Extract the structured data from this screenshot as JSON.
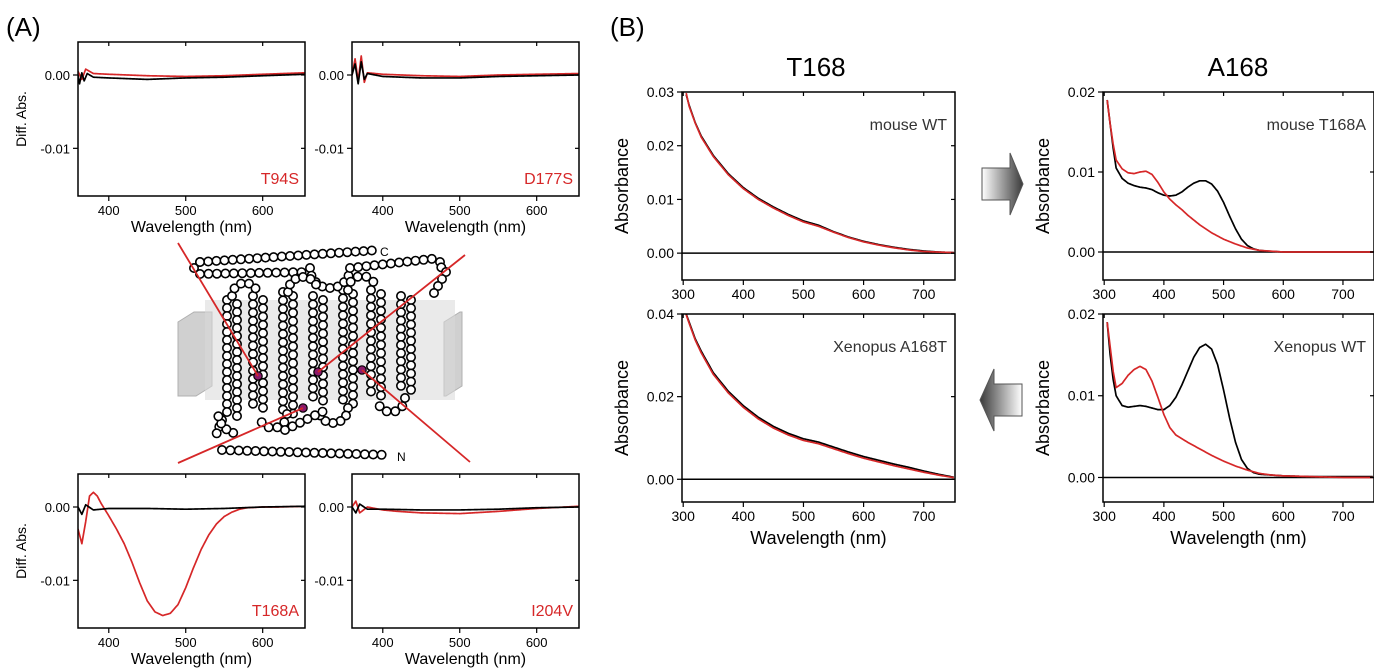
{
  "panel_labels": {
    "a": "(A)",
    "b": "(B)"
  },
  "column_titles": {
    "t168": "T168",
    "a168": "A168"
  },
  "diagram": {
    "c_label": "C",
    "n_label": "N"
  },
  "colors": {
    "sample": "#d62728",
    "reference": "#000000",
    "membrane": "#c8c8c8",
    "highlight": "#8b1a6b"
  },
  "chart_data": [
    {
      "id": "A1",
      "type": "line",
      "inset_label": "T94S",
      "xlabel": "Wavelength (nm)",
      "ylabel": "Diff. Abs.",
      "xlim": [
        360,
        655
      ],
      "ylim": [
        -0.0165,
        0.0045
      ],
      "xticks": [
        400,
        500,
        600
      ],
      "yticks": [
        0.0,
        -0.01
      ],
      "ytick_labels": [
        "0.00",
        "-0.01"
      ],
      "zero_line": false,
      "series": [
        {
          "color": "red",
          "x": [
            360,
            365,
            370,
            380,
            400,
            450,
            500,
            550,
            600,
            655
          ],
          "y": [
            0.0005,
            -0.0006,
            0.0008,
            0.0002,
            0.0001,
            -0.0001,
            -0.0002,
            -0.0001,
            0.0001,
            0.0003
          ]
        },
        {
          "color": "black",
          "x": [
            360,
            362,
            365,
            368,
            372,
            380,
            400,
            450,
            500,
            550,
            600,
            655
          ],
          "y": [
            0.0,
            -0.0012,
            0.0003,
            -0.0008,
            0.0002,
            -0.0003,
            -0.0004,
            -0.0006,
            -0.0004,
            -0.0003,
            -0.0001,
            0.0001
          ]
        }
      ]
    },
    {
      "id": "A2",
      "type": "line",
      "inset_label": "D177S",
      "xlabel": "Wavelength (nm)",
      "ylabel": "",
      "xlim": [
        360,
        655
      ],
      "ylim": [
        -0.0165,
        0.0045
      ],
      "xticks": [
        400,
        500,
        600
      ],
      "yticks": [
        0.0,
        -0.01
      ],
      "ytick_labels": [
        "0.00",
        "-0.01"
      ],
      "zero_line": false,
      "series": [
        {
          "color": "red",
          "x": [
            360,
            364,
            368,
            372,
            376,
            380,
            400,
            450,
            500,
            550,
            600,
            655
          ],
          "y": [
            0.0,
            0.0022,
            -0.0008,
            0.0026,
            -0.001,
            0.0003,
            0.0001,
            -0.0001,
            -0.0002,
            0.0,
            0.0001,
            0.0002
          ]
        },
        {
          "color": "black",
          "x": [
            360,
            364,
            368,
            372,
            376,
            380,
            400,
            450,
            500,
            550,
            600,
            655
          ],
          "y": [
            0.0,
            0.0015,
            -0.0012,
            0.0018,
            -0.0006,
            0.0002,
            -0.0002,
            -0.0004,
            -0.0004,
            -0.0002,
            -0.0001,
            0.0
          ]
        }
      ]
    },
    {
      "id": "A3",
      "type": "line",
      "inset_label": "T168A",
      "xlabel": "Wavelength (nm)",
      "ylabel": "Diff. Abs.",
      "xlim": [
        360,
        655
      ],
      "ylim": [
        -0.0165,
        0.0045
      ],
      "xticks": [
        400,
        500,
        600
      ],
      "yticks": [
        0.0,
        -0.01
      ],
      "ytick_labels": [
        "0.00",
        "-0.01"
      ],
      "zero_line": false,
      "series": [
        {
          "color": "red",
          "x": [
            360,
            365,
            370,
            375,
            380,
            385,
            390,
            400,
            410,
            420,
            430,
            440,
            450,
            460,
            470,
            480,
            490,
            500,
            510,
            520,
            530,
            540,
            550,
            560,
            570,
            580,
            600,
            620,
            655
          ],
          "y": [
            -0.003,
            -0.005,
            -0.002,
            0.0015,
            0.002,
            0.0015,
            0.0005,
            -0.0012,
            -0.003,
            -0.005,
            -0.0075,
            -0.0103,
            -0.0128,
            -0.0143,
            -0.0148,
            -0.0145,
            -0.0133,
            -0.011,
            -0.0083,
            -0.0058,
            -0.0038,
            -0.0023,
            -0.0013,
            -0.0007,
            -0.0003,
            -0.0001,
            0.0,
            0.0,
            0.0001
          ]
        },
        {
          "color": "black",
          "x": [
            360,
            365,
            370,
            380,
            400,
            450,
            500,
            550,
            600,
            655
          ],
          "y": [
            0.0,
            -0.001,
            0.0003,
            -0.0004,
            -0.0002,
            -0.0002,
            -0.0003,
            -0.0002,
            0.0,
            0.0001
          ]
        }
      ]
    },
    {
      "id": "A4",
      "type": "line",
      "inset_label": "I204V",
      "xlabel": "Wavelength (nm)",
      "ylabel": "",
      "xlim": [
        360,
        655
      ],
      "ylim": [
        -0.0165,
        0.0045
      ],
      "xticks": [
        400,
        500,
        600
      ],
      "yticks": [
        0.0,
        -0.01
      ],
      "ytick_labels": [
        "0.00",
        "-0.01"
      ],
      "zero_line": false,
      "series": [
        {
          "color": "red",
          "x": [
            360,
            365,
            370,
            380,
            400,
            420,
            450,
            500,
            550,
            600,
            655
          ],
          "y": [
            0.0,
            0.0008,
            -0.0008,
            0.0,
            -0.0004,
            -0.0006,
            -0.0008,
            -0.0009,
            -0.0006,
            -0.0002,
            0.0001
          ]
        },
        {
          "color": "black",
          "x": [
            360,
            365,
            370,
            380,
            400,
            450,
            500,
            550,
            600,
            655
          ],
          "y": [
            0.0,
            -0.0008,
            0.0004,
            -0.0003,
            -0.0003,
            -0.0004,
            -0.0004,
            -0.0003,
            -0.0001,
            0.0
          ]
        }
      ]
    },
    {
      "id": "B1",
      "type": "line",
      "inset_label": "mouse WT",
      "xlabel": "",
      "ylabel": "Absorbance",
      "xlim": [
        298,
        752
      ],
      "ylim": [
        -0.005,
        0.03
      ],
      "xticks": [
        300,
        400,
        500,
        600,
        700
      ],
      "yticks": [
        0.0,
        0.01,
        0.02,
        0.03
      ],
      "ytick_labels": [
        "0.00",
        "0.01",
        "0.02",
        "0.03"
      ],
      "zero_line": true,
      "series": [
        {
          "color": "black",
          "x": [
            305,
            310,
            320,
            330,
            350,
            375,
            400,
            425,
            450,
            475,
            500,
            525,
            550,
            575,
            600,
            625,
            650,
            675,
            700,
            725,
            750
          ],
          "y": [
            0.0295,
            0.0275,
            0.0243,
            0.0218,
            0.0182,
            0.0148,
            0.0122,
            0.0102,
            0.0086,
            0.0072,
            0.006,
            0.0052,
            0.004,
            0.003,
            0.0022,
            0.0016,
            0.0011,
            0.0007,
            0.0004,
            0.0002,
            0.0001
          ]
        },
        {
          "color": "red",
          "x": [
            305,
            310,
            320,
            330,
            350,
            375,
            400,
            425,
            450,
            475,
            500,
            525,
            550,
            575,
            600,
            625,
            650,
            675,
            700,
            725,
            750
          ],
          "y": [
            0.0298,
            0.0273,
            0.0242,
            0.0216,
            0.018,
            0.0146,
            0.012,
            0.01,
            0.0084,
            0.007,
            0.0058,
            0.005,
            0.0039,
            0.0029,
            0.0021,
            0.0015,
            0.001,
            0.0006,
            0.0003,
            0.0002,
            0.0001
          ]
        }
      ]
    },
    {
      "id": "B2",
      "type": "line",
      "inset_label": "mouse T168A",
      "xlabel": "",
      "ylabel": "Absorbance",
      "xlim": [
        298,
        752
      ],
      "ylim": [
        -0.0035,
        0.02
      ],
      "xticks": [
        300,
        400,
        500,
        600,
        700
      ],
      "yticks": [
        0.0,
        0.01,
        0.02
      ],
      "ytick_labels": [
        "0.00",
        "0.01",
        "0.02"
      ],
      "zero_line": true,
      "series": [
        {
          "color": "black",
          "x": [
            305,
            310,
            315,
            320,
            330,
            340,
            350,
            360,
            370,
            380,
            390,
            400,
            410,
            420,
            430,
            440,
            450,
            460,
            470,
            480,
            490,
            500,
            510,
            520,
            530,
            540,
            550,
            560,
            575,
            600,
            650,
            700,
            750
          ],
          "y": [
            0.019,
            0.016,
            0.013,
            0.0105,
            0.0092,
            0.0086,
            0.0083,
            0.0081,
            0.008,
            0.0078,
            0.0074,
            0.0071,
            0.007,
            0.0071,
            0.0075,
            0.0081,
            0.0086,
            0.0089,
            0.0089,
            0.0085,
            0.0076,
            0.0062,
            0.0045,
            0.0029,
            0.0016,
            0.0008,
            0.0004,
            0.0002,
            0.0001,
            0.0,
            0.0,
            0.0,
            0.0
          ]
        },
        {
          "color": "red",
          "x": [
            305,
            310,
            315,
            320,
            330,
            340,
            350,
            360,
            370,
            380,
            390,
            400,
            410,
            420,
            430,
            440,
            450,
            460,
            470,
            480,
            490,
            500,
            520,
            540,
            560,
            580,
            600,
            650,
            700,
            750
          ],
          "y": [
            0.019,
            0.016,
            0.0135,
            0.0115,
            0.0104,
            0.0099,
            0.0098,
            0.01,
            0.0101,
            0.0097,
            0.0087,
            0.0075,
            0.0066,
            0.0059,
            0.0053,
            0.0046,
            0.004,
            0.0034,
            0.0029,
            0.0024,
            0.002,
            0.0016,
            0.001,
            0.0005,
            0.0002,
            0.0001,
            0.0,
            0.0,
            0.0,
            0.0
          ]
        }
      ]
    },
    {
      "id": "B3",
      "type": "line",
      "inset_label": "Xenopus A168T",
      "xlabel": "Wavelength (nm)",
      "ylabel": "Absorbance",
      "xlim": [
        298,
        752
      ],
      "ylim": [
        -0.0055,
        0.04
      ],
      "xticks": [
        300,
        400,
        500,
        600,
        700
      ],
      "yticks": [
        0.0,
        0.02,
        0.04
      ],
      "ytick_labels": [
        "0.00",
        "0.02",
        "0.04"
      ],
      "zero_line": true,
      "series": [
        {
          "color": "black",
          "x": [
            305,
            310,
            320,
            330,
            350,
            375,
            400,
            425,
            450,
            475,
            500,
            525,
            550,
            575,
            600,
            625,
            650,
            675,
            700,
            725,
            750
          ],
          "y": [
            0.04,
            0.038,
            0.034,
            0.031,
            0.0258,
            0.0213,
            0.0178,
            0.015,
            0.0128,
            0.0111,
            0.0098,
            0.009,
            0.0078,
            0.0066,
            0.0055,
            0.0046,
            0.0037,
            0.0029,
            0.002,
            0.0012,
            0.0005
          ]
        },
        {
          "color": "red",
          "x": [
            305,
            310,
            320,
            330,
            350,
            375,
            400,
            425,
            450,
            475,
            500,
            525,
            550,
            575,
            600,
            625,
            650,
            675,
            700,
            725,
            750
          ],
          "y": [
            0.0398,
            0.0377,
            0.0337,
            0.0306,
            0.0254,
            0.0209,
            0.0174,
            0.0146,
            0.0124,
            0.0107,
            0.0094,
            0.0086,
            0.0074,
            0.0062,
            0.0051,
            0.0042,
            0.0033,
            0.0025,
            0.0017,
            0.001,
            0.0004
          ]
        }
      ]
    },
    {
      "id": "B4",
      "type": "line",
      "inset_label": "Xenopus WT",
      "xlabel": "Wavelength (nm)",
      "ylabel": "Absorbance",
      "xlim": [
        298,
        752
      ],
      "ylim": [
        -0.003,
        0.02
      ],
      "xticks": [
        300,
        400,
        500,
        600,
        700
      ],
      "yticks": [
        0.0,
        0.01,
        0.02
      ],
      "ytick_labels": [
        "0.00",
        "0.01",
        "0.02"
      ],
      "zero_line": true,
      "series": [
        {
          "color": "black",
          "x": [
            305,
            310,
            315,
            320,
            330,
            340,
            350,
            360,
            370,
            380,
            390,
            400,
            410,
            420,
            430,
            440,
            450,
            460,
            470,
            480,
            490,
            500,
            510,
            520,
            530,
            540,
            550,
            560,
            580,
            600,
            650,
            700,
            750
          ],
          "y": [
            0.019,
            0.015,
            0.012,
            0.01,
            0.0088,
            0.0086,
            0.0087,
            0.0088,
            0.0087,
            0.0085,
            0.0083,
            0.0083,
            0.0088,
            0.0098,
            0.0113,
            0.013,
            0.0147,
            0.0159,
            0.0163,
            0.0157,
            0.0138,
            0.0107,
            0.0073,
            0.0043,
            0.0022,
            0.0011,
            0.0006,
            0.0004,
            0.0003,
            0.0002,
            0.0001,
            0.0001,
            0.0001
          ]
        },
        {
          "color": "red",
          "x": [
            305,
            310,
            315,
            320,
            330,
            340,
            350,
            360,
            370,
            380,
            390,
            400,
            410,
            420,
            440,
            460,
            480,
            500,
            520,
            540,
            560,
            580,
            600,
            650,
            700,
            750
          ],
          "y": [
            0.019,
            0.016,
            0.013,
            0.011,
            0.0115,
            0.0125,
            0.0132,
            0.0136,
            0.0132,
            0.0118,
            0.0098,
            0.0077,
            0.0061,
            0.0052,
            0.0043,
            0.0035,
            0.0027,
            0.002,
            0.0014,
            0.0009,
            0.0005,
            0.0003,
            0.0002,
            0.0001,
            0.0,
            0.0
          ]
        }
      ]
    }
  ]
}
